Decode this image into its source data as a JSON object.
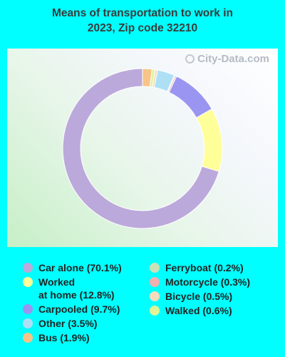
{
  "title": "Means of transportation to work in\n2023, Zip code 32210",
  "watermark": "City-Data.com",
  "chart_data": {
    "type": "pie",
    "style": "donut",
    "title": "Means of transportation to work in 2023, Zip code 32210",
    "slices": [
      {
        "label": "Car alone",
        "value": 70.1,
        "color": "#bca9db",
        "legend": "Car alone (70.1%)"
      },
      {
        "label": "Worked at home",
        "value": 12.8,
        "color": "#ffff99",
        "legend": "Worked\nat home (12.8%)"
      },
      {
        "label": "Carpooled",
        "value": 9.7,
        "color": "#9a95f0",
        "legend": "Carpooled (9.7%)"
      },
      {
        "label": "Motorcycle",
        "value": 0.3,
        "color": "#f0b0b0",
        "legend": "Motorcycle (0.3%)"
      },
      {
        "label": "Ferryboat",
        "value": 0.2,
        "color": "#c8e3b8",
        "legend": "Ferryboat (0.2%)"
      },
      {
        "label": "Other",
        "value": 3.5,
        "color": "#aee0f5",
        "legend": "Other (3.5%)"
      },
      {
        "label": "Bicycle",
        "value": 0.5,
        "color": "#f8dcbe",
        "legend": "Bicycle (0.5%)"
      },
      {
        "label": "Walked",
        "value": 0.6,
        "color": "#ddf598",
        "legend": "Walked (0.6%)"
      },
      {
        "label": "Bus",
        "value": 1.9,
        "color": "#f8c487",
        "legend": "Bus (1.9%)"
      }
    ],
    "legend_columns": [
      [
        "Car alone",
        "Worked at home",
        "Carpooled",
        "Other",
        "Bus"
      ],
      [
        "Ferryboat",
        "Motorcycle",
        "Bicycle",
        "Walked"
      ]
    ]
  }
}
